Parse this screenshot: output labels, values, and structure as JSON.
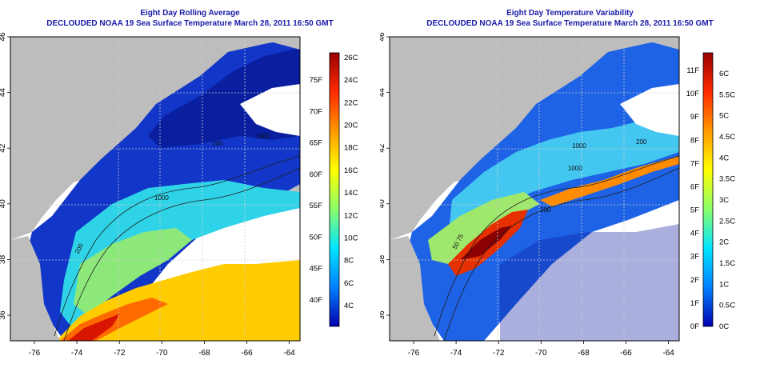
{
  "colors": {
    "title": "#1a1aa8",
    "land": "#bdbdbd",
    "ocean_missing": "#ffffff",
    "grid": "#d0d0d0",
    "frame": "#000000"
  },
  "map_axes": {
    "x_ticks": [
      "-76",
      "-74",
      "-72",
      "-70",
      "-68",
      "-66",
      "-64"
    ],
    "y_ticks": [
      "36",
      "38",
      "40",
      "42",
      "44",
      "46"
    ]
  },
  "left_panel": {
    "title_line1": "Eight Day Rolling Average",
    "title_line2": "DECLOUDED NOAA 19 Sea Surface Temperature March 28, 2011 16:50 GMT",
    "colorbar": {
      "gradient": [
        "#9a0000",
        "#ff2a00",
        "#ff9900",
        "#ffff00",
        "#8bff6b",
        "#00e5ff",
        "#0080ff",
        "#0000b0"
      ],
      "celsius_labels": [
        "26C",
        "24C",
        "22C",
        "20C",
        "18C",
        "16C",
        "14C",
        "12C",
        "10C",
        "8C",
        "6C",
        "4C"
      ],
      "fahrenheit_labels": [
        "75F",
        "70F",
        "65F",
        "60F",
        "55F",
        "50F",
        "45F",
        "40F"
      ]
    },
    "contour_labels": [
      "200",
      "1000",
      "200",
      "1000"
    ]
  },
  "right_panel": {
    "title_line1": "Eight Day Temperature Variability",
    "title_line2": "DECLOUDED NOAA 19 Sea Surface Temperature March 28, 2011 16:50 GMT",
    "colorbar": {
      "gradient": [
        "#9a0000",
        "#ff2a00",
        "#ff9900",
        "#ffff00",
        "#8bff6b",
        "#00e5ff",
        "#0080ff",
        "#0000b0"
      ],
      "fahrenheit_labels": [
        "11F",
        "10F",
        "9F",
        "8F",
        "7F",
        "6F",
        "5F",
        "4F",
        "3F",
        "2F",
        "1F",
        "0F"
      ],
      "celsius_labels": [
        "6C",
        "5.5C",
        "5C",
        "4.5C",
        "4C",
        "3.5C",
        "3C",
        "2.5C",
        "2C",
        "1.5C",
        "1C",
        "0.5C",
        "0C"
      ]
    },
    "contour_labels": [
      "1000",
      "200",
      "1000",
      "200",
      "50 75"
    ]
  }
}
